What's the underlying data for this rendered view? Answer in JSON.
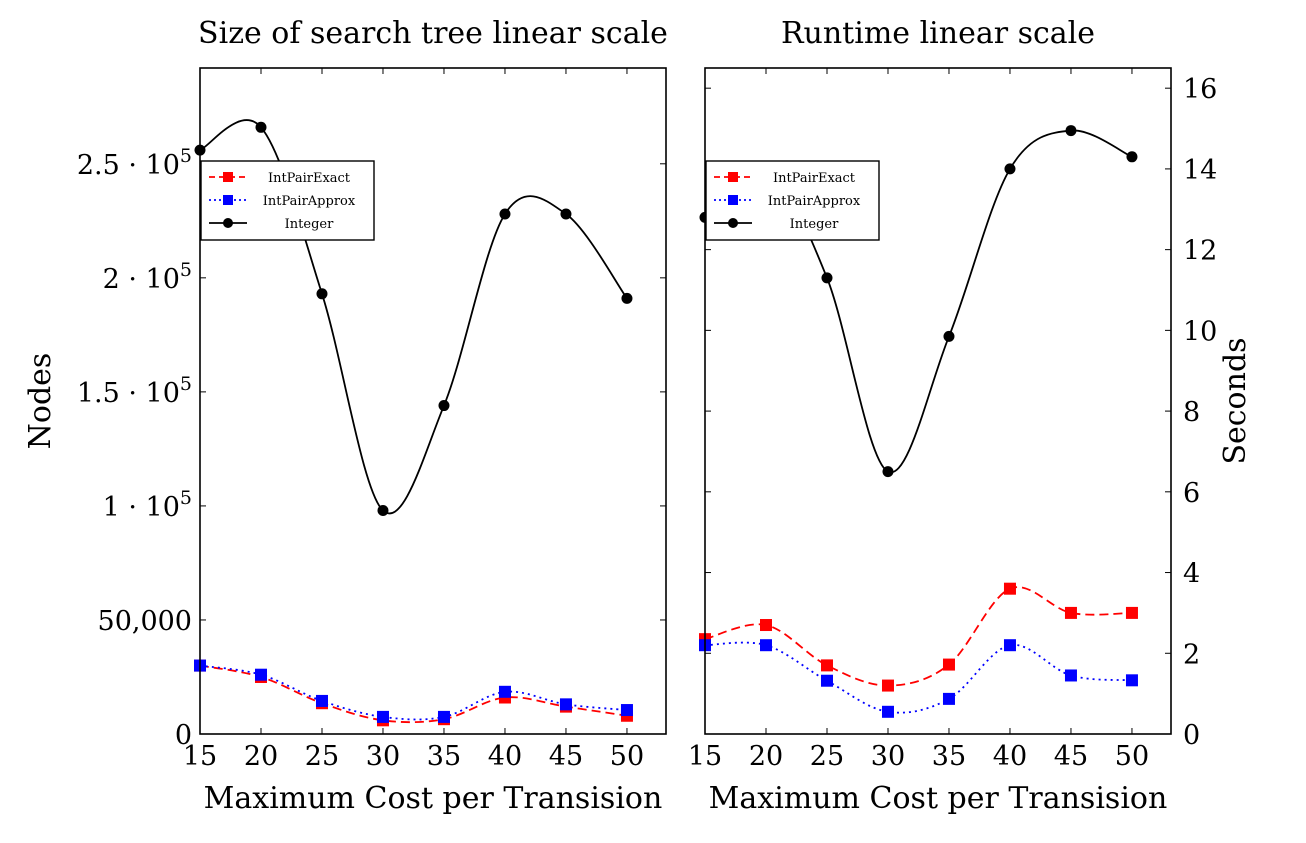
{
  "chart_data": [
    {
      "type": "line",
      "title": "Size of search tree linear scale",
      "xlabel": "Maximum Cost per Transision",
      "ylabel": "Nodes",
      "x": [
        15,
        20,
        25,
        30,
        35,
        40,
        45,
        50
      ],
      "xticks": [
        15,
        20,
        25,
        30,
        35,
        40,
        45,
        50
      ],
      "xlim": [
        15,
        53.2
      ],
      "ylim": [
        0,
        292000
      ],
      "yticks": [
        0,
        50000,
        100000,
        150000,
        200000,
        250000
      ],
      "ytick_labels": [
        "0",
        "50,000",
        "1 · 10^5",
        "1.5 · 10^5",
        "2 · 10^5",
        "2.5 · 10^5"
      ],
      "legend_position": "upper-left",
      "grid": false,
      "series": [
        {
          "name": "IntPairExact",
          "color": "#ff0000",
          "dash": "dashed",
          "marker": "square",
          "smooth": true,
          "values": [
            30000,
            25000,
            13500,
            6000,
            6500,
            16000,
            12000,
            8000
          ]
        },
        {
          "name": "IntPairApprox",
          "color": "#0000ff",
          "dash": "dotted",
          "marker": "square",
          "smooth": true,
          "values": [
            30000,
            26000,
            14500,
            7500,
            7500,
            18500,
            13000,
            10500
          ]
        },
        {
          "name": "Integer",
          "color": "#000000",
          "dash": "solid",
          "marker": "circle",
          "smooth": true,
          "values": [
            256000,
            266000,
            193000,
            98000,
            144000,
            228000,
            228000,
            191000
          ]
        }
      ]
    },
    {
      "type": "line",
      "title": "Runtime linear scale",
      "xlabel": "Maximum Cost per Transision",
      "ylabel": "Seconds",
      "x": [
        15,
        20,
        25,
        30,
        35,
        40,
        45,
        50
      ],
      "xticks": [
        15,
        20,
        25,
        30,
        35,
        40,
        45,
        50
      ],
      "xlim": [
        15,
        53.2
      ],
      "ylim": [
        0,
        16.5
      ],
      "yticks": [
        0,
        2,
        4,
        6,
        8,
        10,
        12,
        14,
        16
      ],
      "ytick_labels": [
        "0",
        "2",
        "4",
        "6",
        "8",
        "10",
        "12",
        "14",
        "16"
      ],
      "legend_position": "upper-left",
      "grid": false,
      "series": [
        {
          "name": "IntPairExact",
          "color": "#ff0000",
          "dash": "dashed",
          "marker": "square",
          "smooth": true,
          "values": [
            2.35,
            2.7,
            1.7,
            1.2,
            1.72,
            3.6,
            3.0,
            3.0
          ]
        },
        {
          "name": "IntPairApprox",
          "color": "#0000ff",
          "dash": "dotted",
          "marker": "square",
          "smooth": true,
          "values": [
            2.2,
            2.2,
            1.32,
            0.55,
            0.87,
            2.2,
            1.45,
            1.33
          ]
        },
        {
          "name": "Integer",
          "color": "#000000",
          "dash": "solid",
          "marker": "circle",
          "smooth": true,
          "values": [
            12.8,
            14.0,
            11.3,
            6.5,
            9.85,
            14.0,
            14.95,
            14.3
          ]
        }
      ]
    }
  ]
}
